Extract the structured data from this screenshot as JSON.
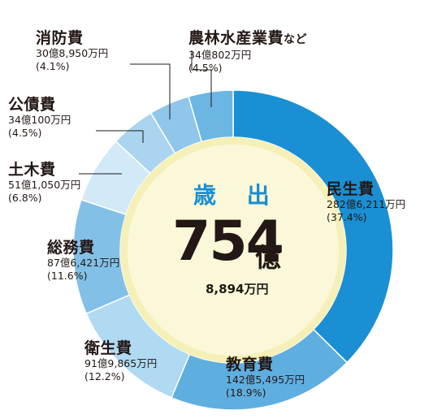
{
  "chart_data": {
    "type": "pie",
    "donut": true,
    "center": {
      "title": "歳 出",
      "total": "754",
      "total_unit": "億",
      "total_sub": "8,894万円"
    },
    "slices": [
      {
        "label": "民生費",
        "amount": "282億6,211万円",
        "percent_text": "(37.4%)",
        "percent": 37.4,
        "color": "#1a8fd3"
      },
      {
        "label": "教育費",
        "amount": "142億5,495万円",
        "percent_text": "(18.9%)",
        "percent": 18.9,
        "color": "#5faee0"
      },
      {
        "label": "衛生費",
        "amount": "91億9,865万円",
        "percent_text": "(12.2%)",
        "percent": 12.2,
        "color": "#b0d9f2"
      },
      {
        "label": "総務費",
        "amount": "87億6,421万円",
        "percent_text": "(11.6%)",
        "percent": 11.6,
        "color": "#82c0e8"
      },
      {
        "label": "土木費",
        "amount": "51億1,050万円",
        "percent_text": "(6.8%)",
        "percent": 6.8,
        "color": "#d2e9f7"
      },
      {
        "label": "公債費",
        "amount": "34億100万円",
        "percent_text": "(4.5%)",
        "percent": 4.5,
        "color": "#aad4ef"
      },
      {
        "label": "消防費",
        "amount": "30億8,950万円",
        "percent_text": "(4.1%)",
        "percent": 4.1,
        "color": "#8fc6ea"
      },
      {
        "label": "農林水産業費",
        "label_suffix": "など",
        "amount": "34億802万円",
        "percent_text": "(4.5%)",
        "percent": 4.5,
        "color": "#6cb6e4"
      }
    ],
    "center_fill": "#fbf8d9",
    "center_ring": "#f5f0b8"
  }
}
